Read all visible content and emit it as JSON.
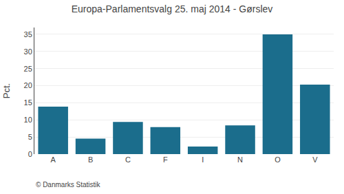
{
  "chart_data": {
    "type": "bar",
    "title": "Europa-Parlamentsvalg 25. maj 2014 - Gørslev",
    "ylabel": "Pct.",
    "annotations": [
      "© Danmarks Statistik"
    ],
    "categories": [
      "A",
      "B",
      "C",
      "F",
      "I",
      "N",
      "O",
      "V"
    ],
    "values": [
      13.9,
      4.5,
      9.4,
      7.9,
      2.2,
      8.4,
      35.0,
      20.3
    ],
    "color": "#1b6d8c",
    "ylim": [
      0,
      37
    ],
    "yticks": [
      0,
      5,
      10,
      15,
      20,
      25,
      30,
      35
    ],
    "grid": true
  }
}
